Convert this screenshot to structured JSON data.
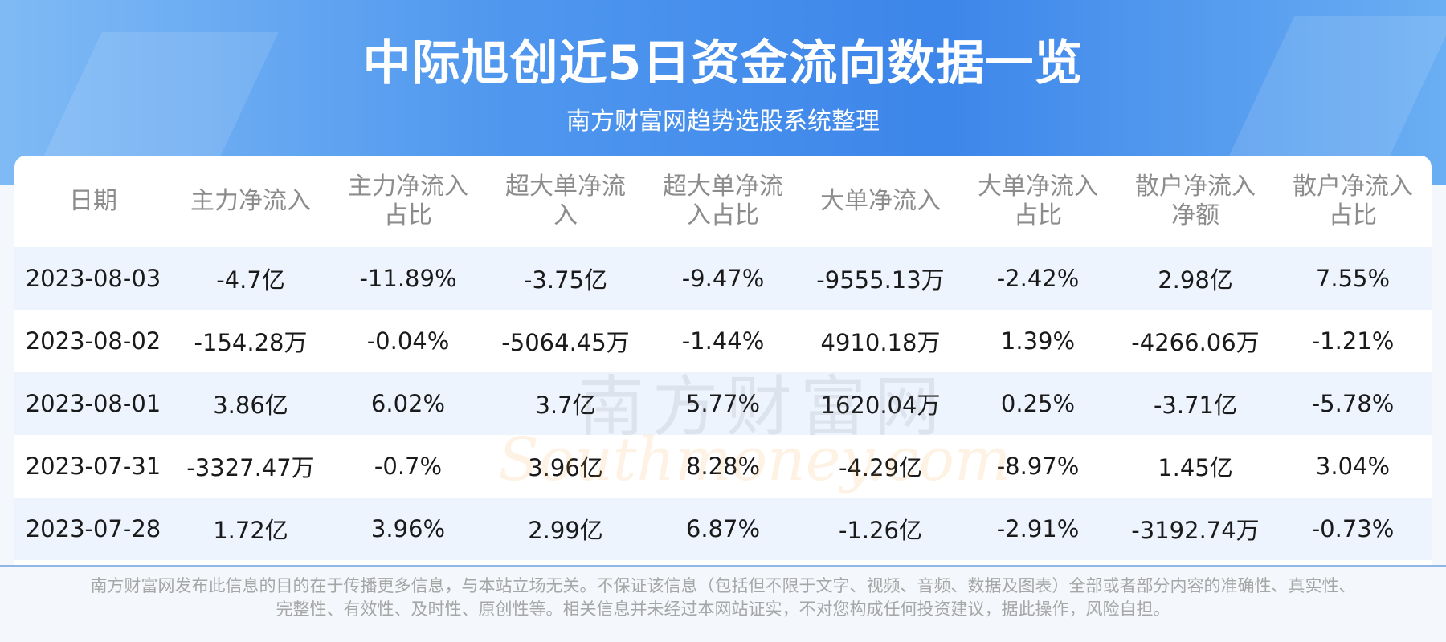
{
  "header": {
    "title": "中际旭创近5日资金流向数据一览",
    "subtitle": "南方财富网趋势选股系统整理"
  },
  "table": {
    "columns": [
      "日期",
      "主力净流入",
      "主力净流入占比",
      "超大单净流入",
      "超大单净流入占比",
      "大单净流入",
      "大单净流入占比",
      "散户净流入净额",
      "散户净流入占比"
    ],
    "rows": [
      [
        "2023-08-03",
        "-4.7亿",
        "-11.89%",
        "-3.75亿",
        "-9.47%",
        "-9555.13万",
        "-2.42%",
        "2.98亿",
        "7.55%"
      ],
      [
        "2023-08-02",
        "-154.28万",
        "-0.04%",
        "-5064.45万",
        "-1.44%",
        "4910.18万",
        "1.39%",
        "-4266.06万",
        "-1.21%"
      ],
      [
        "2023-08-01",
        "3.86亿",
        "6.02%",
        "3.7亿",
        "5.77%",
        "1620.04万",
        "0.25%",
        "-3.71亿",
        "-5.78%"
      ],
      [
        "2023-07-31",
        "-3327.47万",
        "-0.7%",
        "3.96亿",
        "8.28%",
        "-4.29亿",
        "-8.97%",
        "1.45亿",
        "3.04%"
      ],
      [
        "2023-07-28",
        "1.72亿",
        "3.96%",
        "2.99亿",
        "6.87%",
        "-1.26亿",
        "-2.91%",
        "-3192.74万",
        "-0.73%"
      ]
    ]
  },
  "watermark": {
    "name": "南方财富网",
    "url": "Southmoney.com"
  },
  "footer": {
    "lines": [
      "南方财富网发布此信息的目的在于传播更多信息，与本站立场无关。不保证该信息（包括但不限于文字、视频、音频、数据及图表）全部或者部分内容的准确性、真实性、",
      "完整性、有效性、及时性、原创性等。相关信息并未经过本网站证实，不对您构成任何投资建议，据此操作，风险自担。"
    ]
  }
}
